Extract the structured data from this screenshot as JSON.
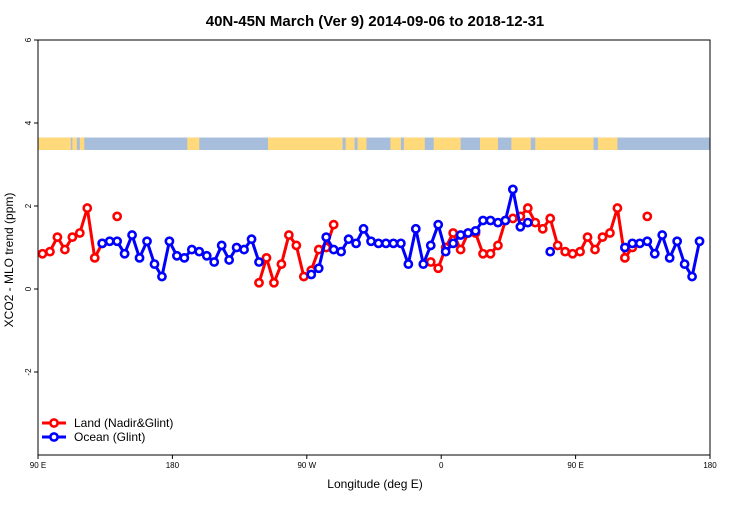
{
  "chart_data": {
    "type": "line",
    "title": "40N-45N March (Ver 9)   2014-09-06 to 2018-12-31",
    "xlabel": "Longitude (deg E)",
    "ylabel": "XCO2 - MLO trend (ppm)",
    "xlim": [
      90,
      540
    ],
    "ylim": [
      -4,
      6
    ],
    "x_ticks": [
      {
        "value": 90,
        "label": "90 E"
      },
      {
        "value": 180,
        "label": "180"
      },
      {
        "value": 270,
        "label": "90 W"
      },
      {
        "value": 360,
        "label": "0"
      },
      {
        "value": 450,
        "label": "90 E"
      },
      {
        "value": 540,
        "label": "180"
      }
    ],
    "y_ticks": [
      {
        "value": -2,
        "label": "-2"
      },
      {
        "value": 0,
        "label": "0"
      },
      {
        "value": 2,
        "label": "2"
      },
      {
        "value": 4,
        "label": "4"
      },
      {
        "value": 6,
        "label": "6"
      }
    ],
    "grid": false,
    "legend_position": "bottom-left",
    "surface_band": {
      "y_range": [
        3.35,
        3.65
      ],
      "land_color": "#FFD97A",
      "ocean_color": "#A6BDDB"
    },
    "series": [
      {
        "name": "Land (Nadir&Glint)",
        "color": "#FF0000",
        "segments": [
          [
            [
              93,
              0.85
            ],
            [
              98,
              0.9
            ],
            [
              103,
              1.25
            ],
            [
              108,
              0.95
            ],
            [
              113,
              1.25
            ],
            [
              118,
              1.35
            ],
            [
              123,
              1.95
            ],
            [
              128,
              0.75
            ],
            [
              133,
              1.1
            ]
          ],
          [
            [
              143,
              1.75
            ]
          ],
          [
            [
              238,
              0.15
            ],
            [
              243,
              0.75
            ],
            [
              248,
              0.15
            ],
            [
              253,
              0.6
            ],
            [
              258,
              1.3
            ],
            [
              263,
              1.05
            ],
            [
              268,
              0.3
            ],
            [
              273,
              0.45
            ],
            [
              278,
              0.95
            ],
            [
              283,
              1.0
            ],
            [
              288,
              1.55
            ]
          ],
          [
            [
              353,
              0.65
            ],
            [
              358,
              0.5
            ],
            [
              363,
              1.0
            ],
            [
              368,
              1.35
            ],
            [
              373,
              0.95
            ],
            [
              378,
              1.35
            ],
            [
              383,
              1.35
            ],
            [
              388,
              0.85
            ],
            [
              393,
              0.85
            ],
            [
              398,
              1.05
            ],
            [
              403,
              1.65
            ],
            [
              408,
              1.7
            ],
            [
              413,
              1.75
            ],
            [
              418,
              1.95
            ],
            [
              423,
              1.6
            ],
            [
              428,
              1.45
            ],
            [
              433,
              1.7
            ],
            [
              438,
              1.05
            ],
            [
              443,
              0.9
            ],
            [
              448,
              0.85
            ],
            [
              453,
              0.9
            ],
            [
              458,
              1.25
            ],
            [
              463,
              0.95
            ],
            [
              468,
              1.25
            ],
            [
              473,
              1.35
            ],
            [
              478,
              1.95
            ],
            [
              483,
              0.75
            ],
            [
              488,
              1.0
            ]
          ],
          [
            [
              498,
              1.75
            ]
          ]
        ]
      },
      {
        "name": "Ocean (Glint)",
        "color": "#0000FF",
        "segments": [
          [
            [
              133,
              1.1
            ],
            [
              138,
              1.15
            ],
            [
              143,
              1.15
            ],
            [
              148,
              0.85
            ],
            [
              153,
              1.3
            ],
            [
              158,
              0.75
            ],
            [
              163,
              1.15
            ],
            [
              168,
              0.6
            ],
            [
              173,
              0.3
            ],
            [
              178,
              1.15
            ],
            [
              183,
              0.8
            ],
            [
              188,
              0.75
            ],
            [
              193,
              0.95
            ],
            [
              198,
              0.9
            ],
            [
              203,
              0.8
            ],
            [
              208,
              0.65
            ],
            [
              213,
              1.05
            ],
            [
              218,
              0.7
            ],
            [
              223,
              1.0
            ],
            [
              228,
              0.95
            ],
            [
              233,
              1.2
            ],
            [
              238,
              0.65
            ]
          ],
          [
            [
              273,
              0.35
            ],
            [
              278,
              0.5
            ],
            [
              283,
              1.25
            ],
            [
              288,
              0.95
            ],
            [
              293,
              0.9
            ],
            [
              298,
              1.2
            ],
            [
              303,
              1.1
            ],
            [
              308,
              1.45
            ],
            [
              313,
              1.15
            ],
            [
              318,
              1.1
            ],
            [
              323,
              1.1
            ],
            [
              328,
              1.1
            ],
            [
              333,
              1.1
            ],
            [
              338,
              0.6
            ],
            [
              343,
              1.45
            ],
            [
              348,
              0.6
            ],
            [
              353,
              1.05
            ],
            [
              358,
              1.55
            ],
            [
              363,
              0.9
            ],
            [
              368,
              1.1
            ],
            [
              373,
              1.3
            ],
            [
              378,
              1.35
            ],
            [
              383,
              1.4
            ],
            [
              388,
              1.65
            ],
            [
              393,
              1.65
            ],
            [
              398,
              1.6
            ],
            [
              403,
              1.65
            ],
            [
              408,
              2.4
            ],
            [
              413,
              1.5
            ],
            [
              418,
              1.6
            ]
          ],
          [
            [
              433,
              0.9
            ]
          ],
          [
            [
              483,
              1.0
            ],
            [
              488,
              1.1
            ],
            [
              493,
              1.1
            ],
            [
              498,
              1.15
            ],
            [
              503,
              0.85
            ],
            [
              508,
              1.3
            ],
            [
              513,
              0.75
            ],
            [
              518,
              1.15
            ],
            [
              523,
              0.6
            ],
            [
              528,
              0.3
            ],
            [
              533,
              1.15
            ]
          ]
        ]
      }
    ]
  }
}
